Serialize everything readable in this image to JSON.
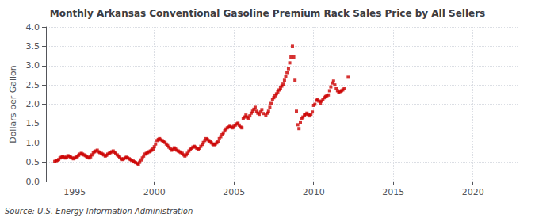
{
  "chart_data": {
    "type": "scatter",
    "title": "Monthly Arkansas Conventional Gasoline Premium Rack Sales Price by All Sellers",
    "ylabel": "Dollars per Gallon",
    "annotation": "Source: U.S. Energy Information Administration",
    "color": "#cc0000",
    "marker": "square",
    "grid": true,
    "xlim": [
      1993.2,
      2022.8
    ],
    "xticks": [
      1995,
      2000,
      2005,
      2010,
      2015,
      2020
    ],
    "ylim": [
      0.0,
      4.0
    ],
    "yticks": [
      {
        "value": 0.0,
        "label": "0.0"
      },
      0.5,
      {
        "value": 1.0,
        "label": "1.0"
      },
      1.5,
      {
        "value": 2.0,
        "label": "2.0"
      },
      2.5,
      {
        "value": 3.0,
        "label": "3.0"
      },
      3.5,
      {
        "value": 4.0,
        "label": "4.0"
      }
    ],
    "x": [
      1993.75,
      1993.83,
      1993.92,
      1994.0,
      1994.08,
      1994.17,
      1994.25,
      1994.33,
      1994.42,
      1994.5,
      1994.58,
      1994.67,
      1994.75,
      1994.83,
      1994.92,
      1995.0,
      1995.08,
      1995.17,
      1995.25,
      1995.33,
      1995.42,
      1995.5,
      1995.58,
      1995.67,
      1995.75,
      1995.83,
      1995.92,
      1996.0,
      1996.08,
      1996.17,
      1996.25,
      1996.33,
      1996.42,
      1996.5,
      1996.58,
      1996.67,
      1996.75,
      1996.83,
      1996.92,
      1997.0,
      1997.08,
      1997.17,
      1997.25,
      1997.33,
      1997.42,
      1997.5,
      1997.58,
      1997.67,
      1997.75,
      1997.83,
      1997.92,
      1998.0,
      1998.08,
      1998.17,
      1998.25,
      1998.33,
      1998.42,
      1998.5,
      1998.58,
      1998.67,
      1998.75,
      1998.83,
      1998.92,
      1999.0,
      1999.08,
      1999.17,
      1999.25,
      1999.33,
      1999.42,
      1999.5,
      1999.58,
      1999.67,
      1999.75,
      1999.83,
      1999.92,
      2000.0,
      2000.08,
      2000.17,
      2000.25,
      2000.33,
      2000.42,
      2000.5,
      2000.58,
      2000.67,
      2000.75,
      2000.83,
      2000.92,
      2001.0,
      2001.08,
      2001.17,
      2001.25,
      2001.33,
      2001.42,
      2001.5,
      2001.58,
      2001.67,
      2001.75,
      2001.83,
      2001.92,
      2002.0,
      2002.08,
      2002.17,
      2002.25,
      2002.33,
      2002.42,
      2002.5,
      2002.58,
      2002.67,
      2002.75,
      2002.83,
      2002.92,
      2003.0,
      2003.08,
      2003.17,
      2003.25,
      2003.33,
      2003.42,
      2003.5,
      2003.58,
      2003.67,
      2003.75,
      2003.83,
      2003.92,
      2004.0,
      2004.08,
      2004.17,
      2004.25,
      2004.33,
      2004.42,
      2004.5,
      2004.58,
      2004.67,
      2004.75,
      2004.83,
      2004.92,
      2005.0,
      2005.08,
      2005.17,
      2005.25,
      2005.33,
      2005.42,
      2005.5,
      2005.58,
      2005.67,
      2005.75,
      2005.83,
      2005.92,
      2006.0,
      2006.08,
      2006.17,
      2006.25,
      2006.33,
      2006.42,
      2006.5,
      2006.58,
      2006.67,
      2006.75,
      2006.83,
      2007.0,
      2007.08,
      2007.17,
      2007.25,
      2007.33,
      2007.42,
      2007.5,
      2007.58,
      2007.67,
      2007.75,
      2007.83,
      2007.92,
      2008.0,
      2008.08,
      2008.17,
      2008.25,
      2008.33,
      2008.42,
      2008.5,
      2008.58,
      2008.67,
      2008.75,
      2008.83,
      2008.92,
      2009.0,
      2009.08,
      2009.17,
      2009.25,
      2009.33,
      2009.42,
      2009.5,
      2009.58,
      2009.67,
      2009.75,
      2009.83,
      2009.92,
      2010.0,
      2010.08,
      2010.17,
      2010.25,
      2010.33,
      2010.42,
      2010.5,
      2010.58,
      2010.67,
      2010.75,
      2010.83,
      2010.92,
      2011.0,
      2011.08,
      2011.17,
      2011.25,
      2011.33,
      2011.42,
      2011.5,
      2011.58,
      2011.67,
      2011.75,
      2011.83,
      2011.92,
      2012.17
    ],
    "values": [
      0.52,
      0.54,
      0.55,
      0.57,
      0.61,
      0.63,
      0.65,
      0.63,
      0.61,
      0.63,
      0.67,
      0.65,
      0.63,
      0.61,
      0.59,
      0.61,
      0.63,
      0.65,
      0.68,
      0.71,
      0.73,
      0.71,
      0.69,
      0.67,
      0.65,
      0.63,
      0.61,
      0.64,
      0.69,
      0.75,
      0.77,
      0.79,
      0.81,
      0.77,
      0.75,
      0.73,
      0.71,
      0.69,
      0.66,
      0.68,
      0.71,
      0.73,
      0.75,
      0.77,
      0.79,
      0.76,
      0.73,
      0.69,
      0.66,
      0.63,
      0.59,
      0.57,
      0.59,
      0.61,
      0.63,
      0.61,
      0.59,
      0.57,
      0.55,
      0.53,
      0.51,
      0.49,
      0.47,
      0.45,
      0.5,
      0.56,
      0.61,
      0.66,
      0.71,
      0.73,
      0.75,
      0.77,
      0.79,
      0.81,
      0.84,
      0.9,
      0.97,
      1.06,
      1.09,
      1.11,
      1.08,
      1.06,
      1.03,
      1.01,
      0.97,
      0.93,
      0.89,
      0.86,
      0.81,
      0.83,
      0.87,
      0.84,
      0.81,
      0.79,
      0.77,
      0.75,
      0.73,
      0.69,
      0.66,
      0.69,
      0.73,
      0.79,
      0.83,
      0.86,
      0.89,
      0.91,
      0.89,
      0.86,
      0.83,
      0.86,
      0.91,
      0.96,
      1.01,
      1.06,
      1.11,
      1.09,
      1.06,
      1.03,
      1.0,
      0.97,
      0.95,
      0.97,
      1.0,
      1.03,
      1.11,
      1.16,
      1.21,
      1.26,
      1.31,
      1.36,
      1.39,
      1.41,
      1.43,
      1.41,
      1.39,
      1.43,
      1.46,
      1.49,
      1.51,
      1.46,
      1.41,
      1.39,
      1.62,
      1.67,
      1.72,
      1.67,
      1.64,
      1.7,
      1.77,
      1.82,
      1.87,
      1.92,
      1.82,
      1.77,
      1.74,
      1.8,
      1.86,
      1.76,
      1.72,
      1.77,
      1.82,
      1.92,
      2.02,
      2.12,
      2.17,
      2.22,
      2.27,
      2.32,
      2.37,
      2.42,
      2.47,
      2.52,
      2.62,
      2.72,
      2.82,
      2.92,
      3.07,
      3.22,
      3.5,
      3.22,
      2.62,
      1.82,
      1.47,
      1.37,
      1.52,
      1.62,
      1.67,
      1.72,
      1.74,
      1.77,
      1.74,
      1.7,
      1.74,
      1.8,
      1.97,
      2.0,
      2.1,
      2.12,
      2.08,
      2.03,
      2.08,
      2.12,
      2.17,
      2.2,
      2.22,
      2.24,
      2.35,
      2.45,
      2.55,
      2.6,
      2.5,
      2.4,
      2.35,
      2.3,
      2.33,
      2.35,
      2.37,
      2.4,
      2.7
    ]
  }
}
